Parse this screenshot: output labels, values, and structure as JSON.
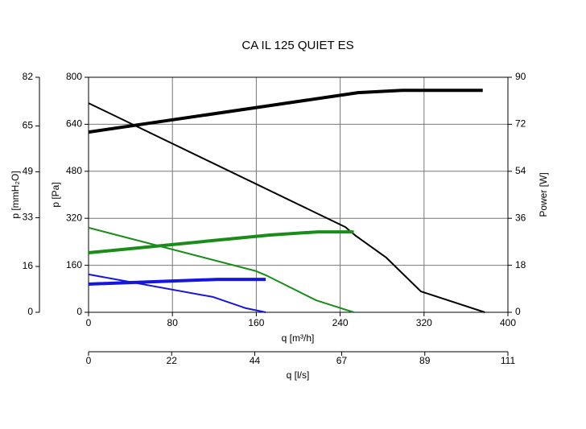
{
  "chart_data": {
    "type": "line",
    "title": "CA IL 125 QUIET ES",
    "xlabel": "q [m³/h]",
    "ylabel": "p [Pa]",
    "y2label": "Power [W]",
    "y3label": "p [mmH₂O]",
    "x2label": "q [l/s]",
    "xlim": [
      0,
      400
    ],
    "xticks": [
      0,
      80,
      160,
      240,
      320,
      400
    ],
    "ylim": [
      0,
      800
    ],
    "yticks": [
      0,
      160,
      320,
      480,
      640,
      800
    ],
    "y2lim": [
      0,
      90
    ],
    "y2ticks": [
      0,
      18,
      36,
      54,
      72,
      90
    ],
    "y3lim": [
      0,
      82
    ],
    "y3ticks": [
      0,
      16,
      33,
      49,
      65,
      82
    ],
    "x2lim": [
      0,
      111
    ],
    "x2ticks": [
      0,
      22,
      44,
      67,
      89,
      111
    ],
    "grid": true,
    "series": [
      {
        "color": "#000000",
        "width": 2,
        "axis": "y",
        "x": [
          0,
          245,
          255,
          284,
          317,
          378
        ],
        "values": [
          712,
          290,
          260,
          186,
          71,
          0
        ]
      },
      {
        "color": "#1a8c1a",
        "width": 2,
        "axis": "y",
        "x": [
          0,
          160,
          171,
          217,
          253
        ],
        "values": [
          288,
          140,
          123,
          41,
          0
        ]
      },
      {
        "color": "#1515e0",
        "width": 2,
        "axis": "y",
        "x": [
          0,
          119,
          150,
          169
        ],
        "values": [
          129,
          52,
          14,
          0
        ]
      },
      {
        "color": "#000000",
        "width": 4,
        "axis": "y2",
        "x": [
          0,
          257,
          299,
          376
        ],
        "values": [
          69,
          84.1,
          85,
          85
        ]
      },
      {
        "color": "#1a8c1a",
        "width": 4,
        "axis": "y2",
        "x": [
          0,
          173,
          219,
          253
        ],
        "values": [
          22.8,
          29.6,
          30.8,
          30.8
        ]
      },
      {
        "color": "#1515e0",
        "width": 4,
        "axis": "y2",
        "x": [
          0,
          123,
          169
        ],
        "values": [
          10.8,
          12.6,
          12.6
        ]
      }
    ]
  }
}
